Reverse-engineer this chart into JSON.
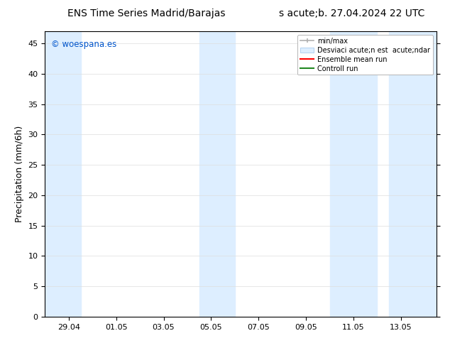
{
  "title_left": "ENS Time Series Madrid/Barajas",
  "title_right": "s acute;b. 27.04.2024 22 UTC",
  "ylabel": "Precipitation (mm/6h)",
  "watermark": "© woespana.es",
  "bg_color": "#ffffff",
  "plot_bg_color": "#ffffff",
  "ylim": [
    0,
    47
  ],
  "yticks": [
    0,
    5,
    10,
    15,
    20,
    25,
    30,
    35,
    40,
    45
  ],
  "xlim": [
    0,
    16.5
  ],
  "x_tick_labels": [
    "29.04",
    "01.05",
    "03.05",
    "05.05",
    "07.05",
    "09.05",
    "11.05",
    "13.05"
  ],
  "x_tick_positions": [
    1.0,
    3.0,
    5.0,
    7.0,
    9.0,
    11.0,
    13.0,
    15.0
  ],
  "shaded_regions": [
    {
      "x_start": 0.0,
      "x_end": 1.5,
      "color": "#ddeeff"
    },
    {
      "x_start": 6.5,
      "x_end": 8.0,
      "color": "#ddeeff"
    },
    {
      "x_start": 12.0,
      "x_end": 14.0,
      "color": "#ddeeff"
    },
    {
      "x_start": 14.5,
      "x_end": 16.5,
      "color": "#ddeeff"
    }
  ],
  "legend_entries": [
    {
      "label": "min/max",
      "color": "#b0b0b0",
      "type": "errorbar"
    },
    {
      "label": "Desviaci acute;n est  acute;ndar",
      "color": "#ddeeff",
      "type": "box"
    },
    {
      "label": "Ensemble mean run",
      "color": "#ff0000",
      "type": "line"
    },
    {
      "label": "Controll run",
      "color": "#008000",
      "type": "line"
    }
  ],
  "title_fontsize": 10,
  "watermark_color": "#0055cc",
  "tick_fontsize": 8,
  "ylabel_fontsize": 9,
  "legend_fontsize": 7
}
